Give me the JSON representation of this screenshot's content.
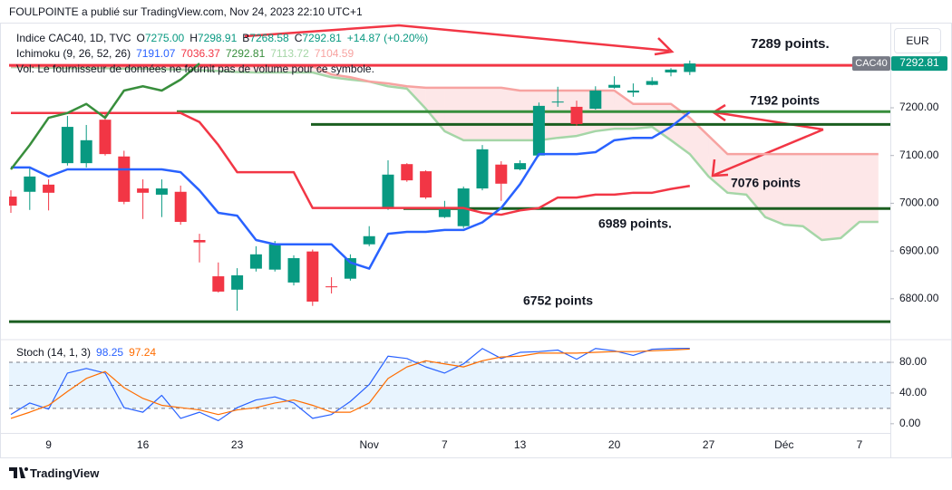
{
  "header": {
    "publisher": "FOULPOINTE a publié sur TradingView.com, Nov 24, 2023 22:10 UTC+1",
    "currency": "EUR",
    "logo": "TradingView"
  },
  "chart_data": [
    {
      "type": "candlestick",
      "symbol": "Indice CAC40, 1D, TVC",
      "ohlc_legend": [
        {
          "label": "O",
          "value": "7275.00"
        },
        {
          "label": "H",
          "value": "7298.91"
        },
        {
          "label": "B",
          "value": "7268.58"
        },
        {
          "label": "C",
          "value": "7292.81"
        }
      ],
      "change": "+14.87 (+0.20%)",
      "indicator": "Ichimoku (9, 26, 52, 26)",
      "volume_note": "Vol: Le fournisseur de données ne fournit pas de volume pour ce symbole.",
      "categories": [
        null,
        null,
        "9",
        null,
        null,
        null,
        null,
        "16",
        null,
        null,
        null,
        null,
        "23",
        null,
        null,
        null,
        null,
        null,
        null,
        "Nov",
        null,
        null,
        null,
        "7",
        null,
        null,
        null,
        "13",
        null,
        null,
        null,
        null,
        "20",
        null,
        null,
        null,
        null,
        "27",
        null,
        null,
        null,
        "Déc",
        null,
        null,
        null,
        "7",
        null
      ],
      "open": [
        7014,
        7024,
        7039,
        7084,
        7084,
        7175,
        7098,
        7031,
        7018,
        7024,
        6923,
        6847,
        6819,
        6863,
        6861,
        6834,
        6899,
        6826,
        6842,
        6914,
        6990,
        7082,
        7067,
        6971,
        6952,
        7031,
        7081,
        7071,
        7100,
        7211,
        7202,
        7198,
        7242,
        7232,
        7248,
        7274,
        7275,
        null,
        null,
        null,
        null,
        null,
        null,
        null,
        null,
        null,
        null
      ],
      "high": [
        7027,
        7075,
        7050,
        7183,
        7164,
        7189,
        7110,
        7050,
        7050,
        7037,
        6936,
        6876,
        6864,
        6910,
        6921,
        6891,
        6903,
        6845,
        6893,
        6952,
        7090,
        7084,
        7069,
        7005,
        7035,
        7122,
        7088,
        7090,
        7211,
        7244,
        7215,
        7245,
        7266,
        7251,
        7264,
        7283,
        7298.91,
        null,
        null,
        null,
        null,
        null,
        null,
        null,
        null,
        null,
        null
      ],
      "low": [
        6980,
        6986,
        6985,
        7079,
        7075,
        7100,
        6998,
        6967,
        6971,
        6955,
        6876,
        6813,
        6775,
        6857,
        6857,
        6828,
        6785,
        6811,
        6838,
        6910,
        6986,
        7045,
        7009,
        6969,
        6948,
        7027,
        7005,
        7069,
        7098,
        7202,
        7162,
        7196,
        7240,
        7223,
        7247,
        7266,
        7268.58,
        null,
        null,
        null,
        null,
        null,
        null,
        null,
        null,
        null,
        null
      ],
      "close": [
        6995,
        7056,
        7022,
        7160,
        7132,
        7103,
        7003,
        7022,
        7031,
        6961,
        6918,
        6815,
        6849,
        6893,
        6914,
        6885,
        6794,
        6824,
        6885,
        6931,
        7060,
        7048,
        7012,
        6990,
        7031,
        7113,
        7041,
        7084,
        7204,
        7213,
        7166,
        7236,
        7248,
        7236,
        7256,
        7280,
        7292.81,
        null,
        null,
        null,
        null,
        null,
        null,
        null,
        null,
        null,
        null
      ],
      "up_color": "#089981",
      "down_color": "#f23645",
      "series": [
        {
          "color": "#2962ff",
          "legend": "7191.07",
          "values": [
            7075,
            7075,
            7056,
            7071,
            7071,
            7071,
            7071,
            7071,
            7071,
            7065,
            7027,
            6980,
            6974,
            6923,
            6914,
            6914,
            6914,
            6914,
            6876,
            6863,
            6936,
            6940,
            6940,
            6944,
            6944,
            6960,
            6990,
            7040,
            7103,
            7103,
            7103,
            7107,
            7132,
            7137,
            7137,
            7160,
            7191.07,
            null,
            null,
            null,
            null,
            null,
            null,
            null,
            null,
            null,
            null
          ]
        },
        {
          "color": "#f23645",
          "legend": "7036.37",
          "values": [
            7189,
            7189,
            7189,
            7189,
            7189,
            7189,
            7189,
            7189,
            7189,
            7189,
            7170,
            7122,
            7065,
            7065,
            7065,
            7065,
            6990,
            6990,
            6990,
            6990,
            6990,
            6990,
            6990,
            6990,
            6990,
            6980,
            6976,
            6985,
            6990,
            7012,
            7012,
            7018,
            7018,
            7022,
            7022,
            7030,
            7036.37,
            null,
            null,
            null,
            null,
            null,
            null,
            null,
            null,
            null,
            null
          ]
        },
        {
          "color": "#388e3c",
          "legend": "7292.81",
          "values": [
            7071,
            7122,
            7179,
            7189,
            7208,
            7179,
            7236,
            7245,
            7236,
            7259,
            7292.81,
            null,
            null,
            null,
            null,
            null,
            null,
            null,
            null,
            null,
            null,
            null,
            null,
            null,
            null,
            null,
            null,
            null,
            null,
            null,
            null,
            null,
            null,
            null,
            null,
            null,
            null,
            null,
            null,
            null,
            null,
            null,
            null,
            null,
            null,
            null,
            null
          ]
        },
        {
          "color": "#a5d6a7",
          "legend": "7113.72",
          "values": [
            7285,
            7285,
            7284,
            7283,
            7283,
            7283,
            7282,
            7282,
            7281,
            7280,
            7279,
            7277,
            7275,
            7274,
            7274,
            7274,
            7274,
            7264,
            7259,
            7255,
            7245,
            7240,
            7198,
            7151,
            7132,
            7132,
            7132,
            7132,
            7132,
            7137,
            7141,
            7151,
            7156,
            7156,
            7160,
            7132,
            7103,
            7056,
            7022,
            7018,
            6971,
            6955,
            6952,
            6923,
            6927,
            6961,
            6961
          ]
        },
        {
          "color": "#f7a3a1",
          "legend": "7104.59",
          "values": [
            7287,
            7287,
            7287,
            7287,
            7287,
            7287,
            7287,
            7287,
            7287,
            7287,
            7287,
            7287,
            7287,
            7287,
            7287,
            7287,
            7287,
            7270,
            7264,
            7255,
            7251,
            7245,
            7242,
            7242,
            7242,
            7242,
            7242,
            7236,
            7236,
            7236,
            7236,
            7236,
            7236,
            7208,
            7208,
            7208,
            7179,
            7141,
            7103,
            7103,
            7103,
            7103,
            7103,
            7103,
            7103,
            7103,
            7103
          ]
        }
      ],
      "cloud_colors": [
        "rgba(67,160,71,0.12)",
        "rgba(242,54,69,0.12)"
      ],
      "last_price": {
        "name": "CAC40",
        "value": 7292.81,
        "label": "7292.81",
        "name_color": "#787b86",
        "color": "#089981"
      },
      "levels": [
        {
          "value": 7289,
          "color": "#f23645",
          "label": "7289 points."
        },
        {
          "value": 7192,
          "color": "#388e3c",
          "label": "7192 points"
        },
        {
          "value": 7165,
          "color": "#1b5e20"
        },
        {
          "value": 6989,
          "color": "#1b5e20",
          "label": "6989 points."
        },
        {
          "value": 6752,
          "color": "#1b5e20",
          "label": "6752 points"
        }
      ],
      "annotations": [
        {
          "label": "7076 points",
          "color": "#33691e"
        }
      ],
      "ylim": [
        6720,
        7384
      ],
      "yticks": [
        {
          "value": 6800,
          "label": "6800.00"
        },
        {
          "value": 6900,
          "label": "6900.00"
        },
        {
          "value": 7000,
          "label": "7000.00"
        },
        {
          "value": 7100,
          "label": "7100.00"
        },
        {
          "value": 7200,
          "label": "7200.00"
        }
      ]
    },
    {
      "type": "line",
      "title": "Stoch (14, 1, 3)",
      "series": [
        {
          "color": "#2962ff",
          "legend": "98.25",
          "values": [
            12,
            27,
            19,
            66,
            72,
            66,
            21,
            15,
            37,
            7,
            15,
            4,
            21,
            31,
            35,
            27,
            7,
            12,
            29,
            51,
            88,
            85,
            74,
            66,
            78,
            98,
            85,
            93,
            94,
            96,
            84,
            98,
            95,
            89,
            97,
            98,
            98.25,
            null,
            null,
            null,
            null,
            null,
            null,
            null,
            null,
            null,
            null
          ]
        },
        {
          "color": "#ff6d00",
          "legend": "97.24",
          "values": [
            7,
            15,
            24,
            42,
            59,
            68,
            47,
            33,
            24,
            21,
            18,
            12,
            18,
            21,
            27,
            31,
            24,
            15,
            15,
            27,
            59,
            74,
            82,
            78,
            74,
            82,
            87,
            88,
            92,
            92,
            92,
            93,
            94,
            94,
            95,
            96,
            97.24,
            null,
            null,
            null,
            null,
            null,
            null,
            null,
            null,
            null,
            null
          ]
        }
      ],
      "bands": [
        20,
        50,
        80
      ],
      "band_fill": "rgba(33,150,243,0.1)",
      "ylim": [
        -12,
        106
      ],
      "yticks": [
        {
          "value": 0,
          "label": "0.00"
        },
        {
          "value": 40,
          "label": "40.00"
        },
        {
          "value": 80,
          "label": "80.00"
        }
      ]
    }
  ]
}
